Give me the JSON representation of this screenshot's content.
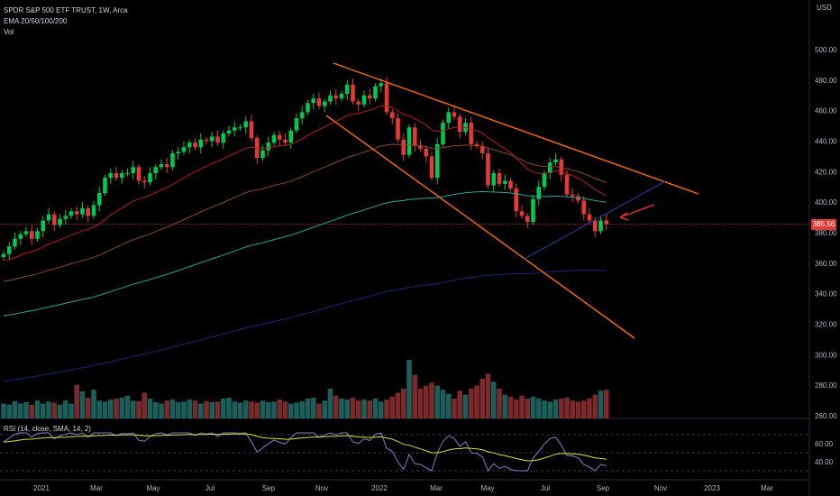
{
  "header": {
    "symbol_line": "SPDR S&P 500 ETF TRUST, 1W, Arca",
    "ema_line": "EMA 20/50/100/200",
    "vol_line": "Vol"
  },
  "rsi_header": "RSI (14, close, SMA, 14, 2)",
  "currency": "USD",
  "last_price_label": "385.56",
  "colors": {
    "up": "#00c853",
    "down": "#e53935",
    "vol_up": "#1b5e5a",
    "vol_down": "#7a2a2a",
    "ema20": "#b71c1c",
    "ema50": "#8d4a24",
    "ema100": "#26a69a",
    "ema200": "#1a237e",
    "trendline": "#ff6d00",
    "support": "#283593",
    "rsi": "#9575cd",
    "rsi_sma": "#c6e83a"
  },
  "chart_data": {
    "type": "candlestick",
    "title": "SPDR S&P 500 ETF TRUST, 1W, Arca",
    "ylabel": "USD",
    "ylim": [
      260,
      520
    ],
    "y_ticks": [
      260,
      280,
      300,
      320,
      340,
      360,
      380,
      400,
      420,
      440,
      460,
      480,
      500
    ],
    "x_ticks": [
      "2021",
      "Mar",
      "May",
      "Jul",
      "Sep",
      "Nov",
      "2022",
      "Mar",
      "May",
      "Jul",
      "Sep",
      "Nov",
      "2023",
      "Mar"
    ],
    "last_price": 385.56,
    "closes": [
      366,
      371,
      376,
      379,
      381,
      376,
      381,
      388,
      392,
      385,
      389,
      391,
      394,
      392,
      396,
      391,
      398,
      406,
      416,
      419,
      416,
      419,
      419,
      423,
      414,
      413,
      419,
      423,
      425,
      423,
      432,
      433,
      436,
      439,
      436,
      441,
      440,
      443,
      439,
      445,
      447,
      449,
      449,
      453,
      442,
      429,
      434,
      439,
      444,
      441,
      439,
      447,
      455,
      459,
      465,
      468,
      463,
      466,
      470,
      468,
      471,
      477,
      466,
      464,
      470,
      468,
      476,
      478,
      459,
      455,
      441,
      431,
      449,
      437,
      435,
      430,
      416,
      438,
      452,
      459,
      456,
      446,
      452,
      438,
      437,
      432,
      411,
      419,
      412,
      414,
      409,
      394,
      391,
      387,
      402,
      410,
      419,
      426,
      428,
      418,
      405,
      404,
      401,
      392,
      388,
      381,
      388,
      385.56
    ],
    "rsi": {
      "y_ticks": [
        40,
        60
      ],
      "bands": [
        30,
        50,
        70
      ]
    },
    "series": [
      {
        "name": "EMA 20"
      },
      {
        "name": "EMA 50"
      },
      {
        "name": "EMA 100"
      },
      {
        "name": "EMA 200"
      }
    ]
  }
}
